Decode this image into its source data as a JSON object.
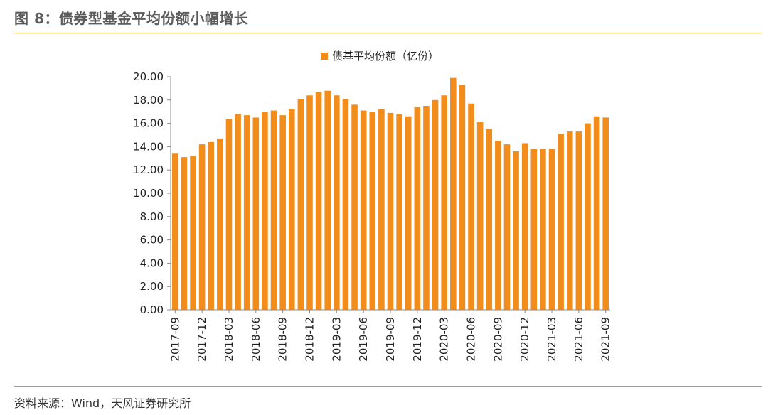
{
  "figure": {
    "title": "图 8：债券型基金平均份额小幅增长",
    "source": "资料来源：Wind，天风证券研究所"
  },
  "colors": {
    "bar": "#f28c1a",
    "rule": "#e98a2b",
    "axis": "#8c8c8c"
  },
  "chart_data": {
    "type": "bar",
    "title": "",
    "xlabel": "",
    "ylabel": "",
    "legend": {
      "position": "top-center",
      "entries": [
        "债基平均份额（亿份）"
      ]
    },
    "grid": false,
    "ylim": [
      0,
      20
    ],
    "y_ticks": [
      "0.00",
      "2.00",
      "4.00",
      "6.00",
      "8.00",
      "10.00",
      "12.00",
      "14.00",
      "16.00",
      "18.00",
      "20.00"
    ],
    "x_tick_labels": [
      "2017-09",
      "2017-12",
      "2018-03",
      "2018-06",
      "2018-09",
      "2018-12",
      "2019-03",
      "2019-06",
      "2019-09",
      "2019-12",
      "2020-03",
      "2020-06",
      "2020-09",
      "2020-12",
      "2021-03",
      "2021-06",
      "2021-09"
    ],
    "categories": [
      "2017-09",
      "2017-10",
      "2017-11",
      "2017-12",
      "2018-01",
      "2018-02",
      "2018-03",
      "2018-04",
      "2018-05",
      "2018-06",
      "2018-07",
      "2018-08",
      "2018-09",
      "2018-10",
      "2018-11",
      "2018-12",
      "2019-01",
      "2019-02",
      "2019-03",
      "2019-04",
      "2019-05",
      "2019-06",
      "2019-07",
      "2019-08",
      "2019-09",
      "2019-10",
      "2019-11",
      "2019-12",
      "2020-01",
      "2020-02",
      "2020-03",
      "2020-04",
      "2020-05",
      "2020-06",
      "2020-07",
      "2020-08",
      "2020-09",
      "2020-10",
      "2020-11",
      "2020-12",
      "2021-01",
      "2021-02",
      "2021-03",
      "2021-04",
      "2021-05",
      "2021-06",
      "2021-07",
      "2021-08",
      "2021-09"
    ],
    "series": [
      {
        "name": "债基平均份额（亿份）",
        "values": [
          13.4,
          13.1,
          13.2,
          14.2,
          14.4,
          14.7,
          16.4,
          16.8,
          16.7,
          16.5,
          17.0,
          17.1,
          16.7,
          17.2,
          18.1,
          18.4,
          18.7,
          18.8,
          18.4,
          18.1,
          17.6,
          17.1,
          17.0,
          17.2,
          16.9,
          16.8,
          16.6,
          17.4,
          17.5,
          18.0,
          18.4,
          19.9,
          19.3,
          17.7,
          16.1,
          15.5,
          14.5,
          14.2,
          13.6,
          14.3,
          13.8,
          13.8,
          13.8,
          15.1,
          15.3,
          15.3,
          16.0,
          16.6,
          16.5
        ]
      }
    ]
  }
}
